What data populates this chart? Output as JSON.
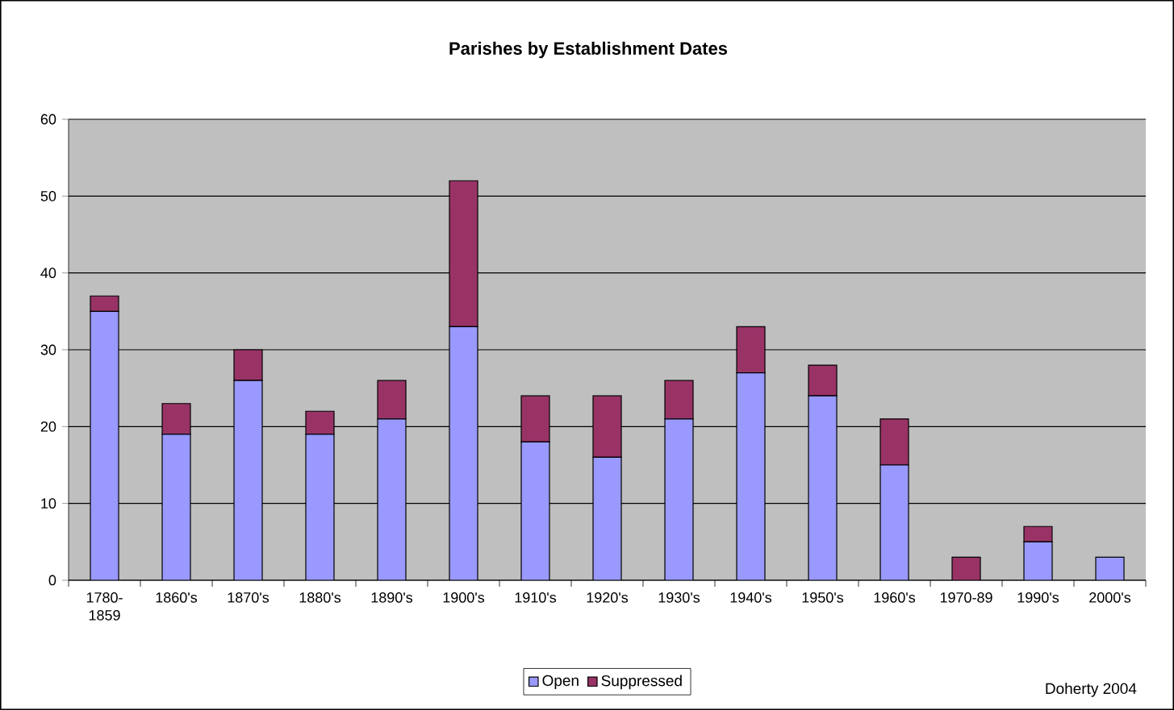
{
  "chart_data": {
    "type": "bar",
    "title": "Parishes by Establishment Dates",
    "categories": [
      "1780-1859",
      "1860's",
      "1870's",
      "1880's",
      "1890's",
      "1900's",
      "1910's",
      "1920's",
      "1930's",
      "1940's",
      "1950's",
      "1960's",
      "1970-89",
      "1990's",
      "2000's"
    ],
    "series": [
      {
        "name": "Open",
        "color": "#9999ff",
        "values": [
          35,
          19,
          26,
          19,
          21,
          33,
          18,
          16,
          21,
          27,
          24,
          15,
          0,
          5,
          3
        ]
      },
      {
        "name": "Suppressed",
        "color": "#993366",
        "values": [
          2,
          4,
          4,
          3,
          5,
          19,
          6,
          8,
          5,
          6,
          4,
          6,
          3,
          2,
          0
        ]
      }
    ],
    "stacked": true,
    "ylim": [
      0,
      60
    ],
    "yticks": [
      0,
      10,
      20,
      30,
      40,
      50,
      60
    ],
    "grid": "y",
    "legend": "bottom",
    "annotations": [
      "Doherty 2004"
    ]
  }
}
